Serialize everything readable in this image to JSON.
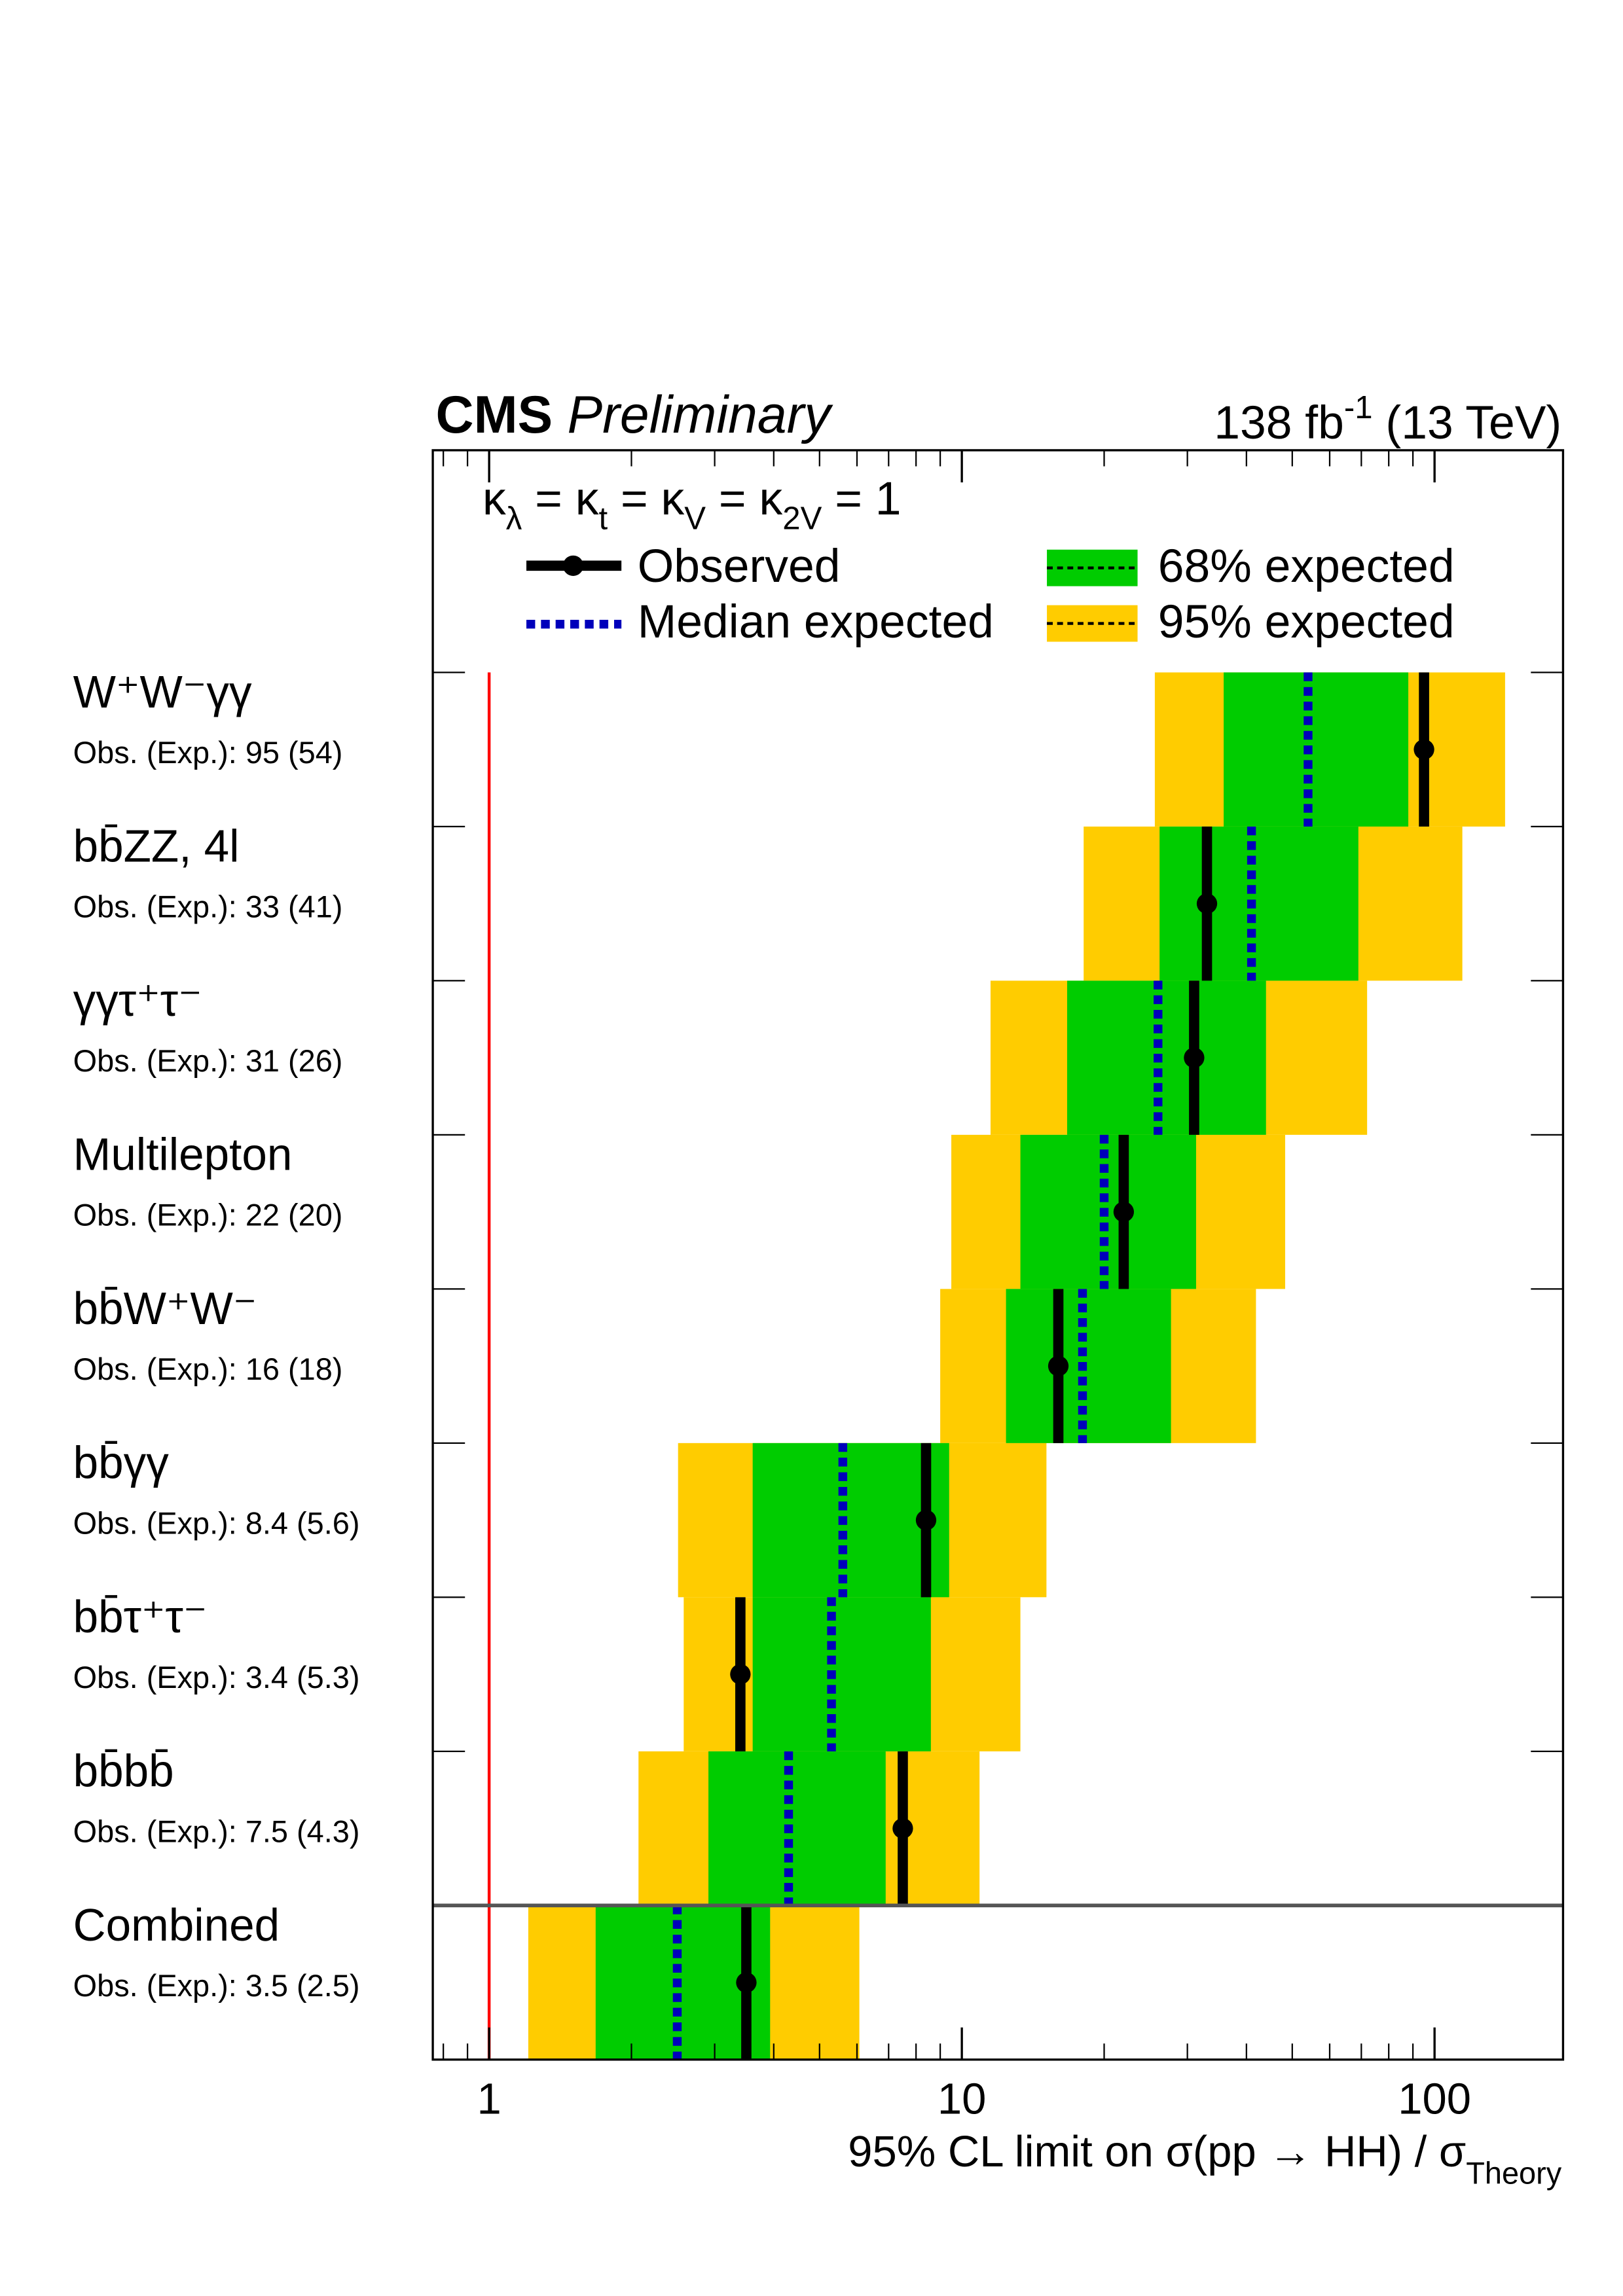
{
  "chart_data": {
    "type": "limit",
    "brand": "CMS",
    "status": "Preliminary",
    "lumi": [
      "138 fb",
      "-1",
      " (13 TeV)"
    ],
    "legend_title": [
      "κ",
      "λ",
      " = κ",
      "t",
      " = κ",
      "V",
      " = κ",
      "2V",
      " = 1"
    ],
    "xlabel": [
      "95% CL limit on σ(pp → HH) / σ",
      "Theory"
    ],
    "categories": [
      "W⁺W⁻γγ",
      "bb̄ZZ, 4l",
      "γγτ⁺τ⁻",
      "Multilepton",
      "bb̄W⁺W⁻",
      "bb̄γγ",
      "bb̄τ⁺τ⁻",
      "bb̄bb̄",
      "Combined"
    ],
    "annotations": [
      "Obs. (Exp.): 95 (54)",
      "Obs. (Exp.): 33 (41)",
      "Obs. (Exp.): 31 (26)",
      "Obs. (Exp.): 22 (20)",
      "Obs. (Exp.): 16 (18)",
      "Obs. (Exp.): 8.4 (5.6)",
      "Obs. (Exp.): 3.4 (5.3)",
      "Obs. (Exp.): 7.5 (4.3)",
      "Obs. (Exp.): 3.5 (2.5)"
    ],
    "series": [
      {
        "name": "Observed",
        "color": "#000000",
        "values": [
          95,
          33,
          31,
          22,
          16,
          8.4,
          3.4,
          7.5,
          3.5
        ]
      },
      {
        "name": "Median expected",
        "color": "#0000bb",
        "values": [
          54,
          41,
          26,
          20,
          18,
          5.6,
          5.3,
          4.3,
          2.5
        ]
      },
      {
        "name": "68% expected",
        "color": "#00cc00",
        "low": [
          35.8,
          26.2,
          16.7,
          13.3,
          12.4,
          3.61,
          3.61,
          2.91,
          1.68
        ],
        "high": [
          88,
          69,
          44,
          31.3,
          27.7,
          9.4,
          8.6,
          6.9,
          3.93
        ]
      },
      {
        "name": "95% expected",
        "color": "#ffcc00",
        "low": [
          25.6,
          18.1,
          11.5,
          9.5,
          9.0,
          2.51,
          2.58,
          2.07,
          1.21
        ],
        "high": [
          141,
          114.5,
          72,
          48.3,
          41.9,
          15.1,
          13.3,
          10.9,
          6.07
        ]
      }
    ],
    "reference_line": 1,
    "reference_color": "#ff0000",
    "xscale": "log",
    "xlim": [
      0.76,
      187
    ],
    "xticks": [
      1,
      10,
      100
    ],
    "xminorticks": [
      0.8,
      0.9,
      2,
      3,
      4,
      5,
      6,
      7,
      8,
      9,
      20,
      30,
      40,
      50,
      60,
      70,
      80,
      90
    ]
  }
}
